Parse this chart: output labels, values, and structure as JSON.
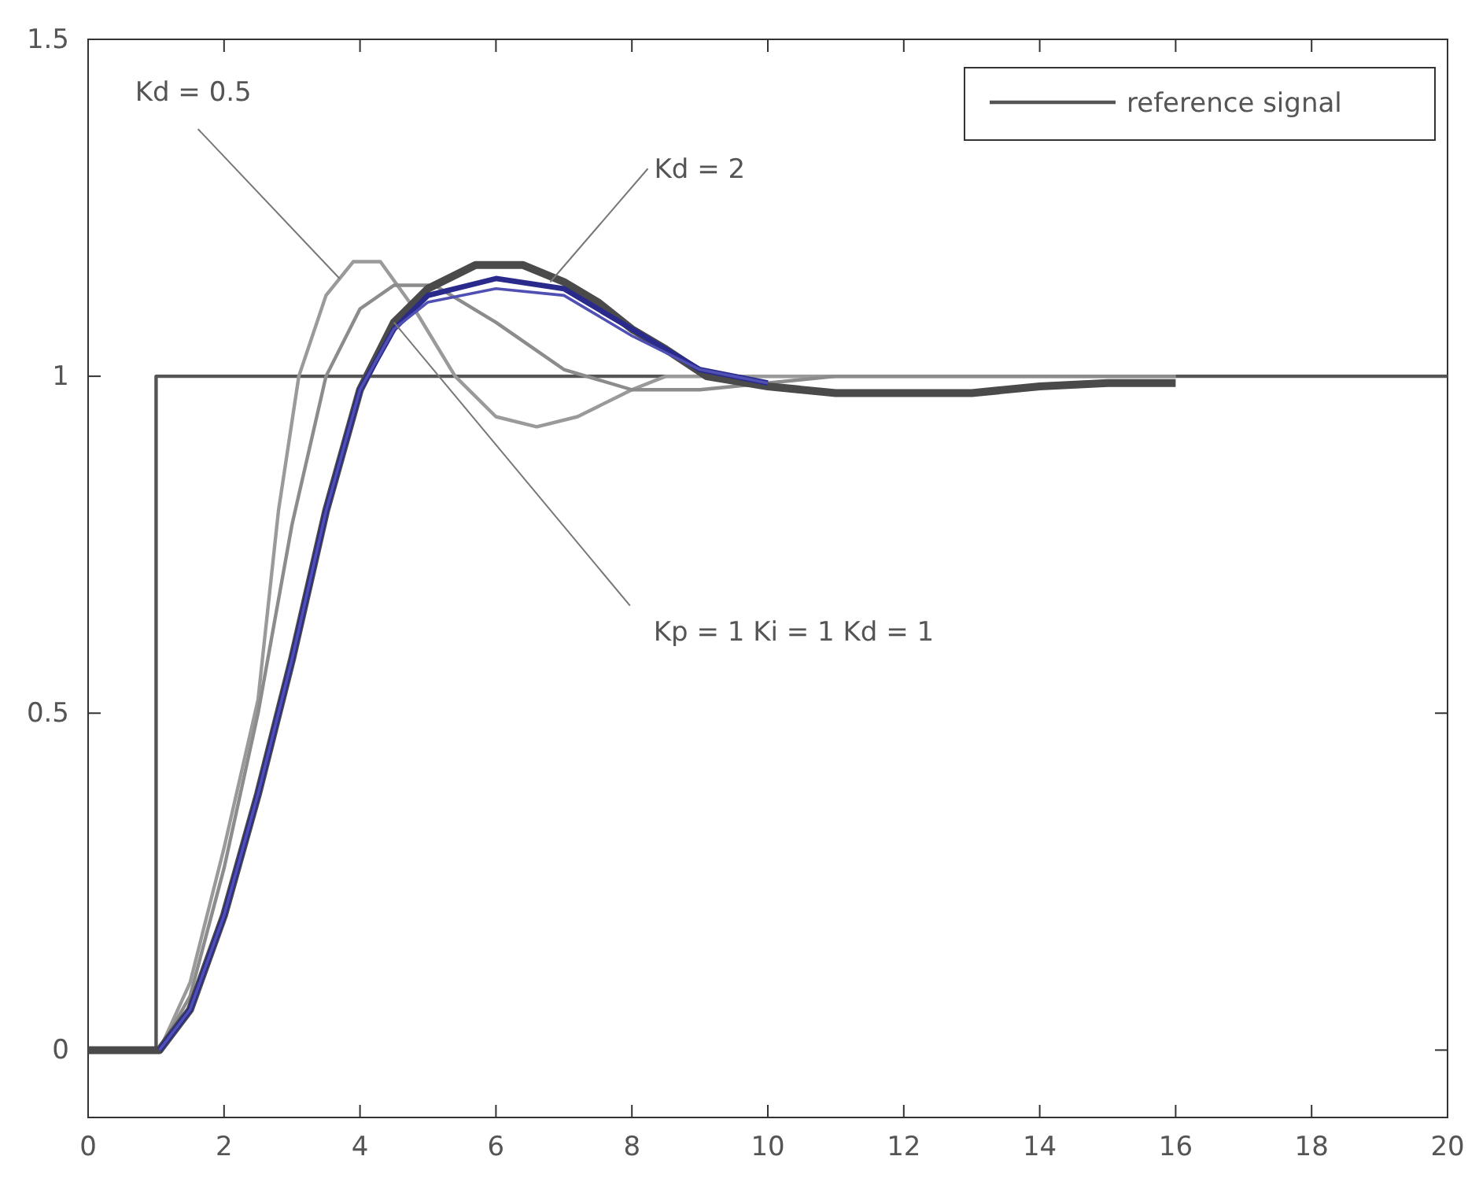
{
  "chart_data": {
    "type": "line",
    "xlim": [
      0,
      20
    ],
    "ylim": [
      -0.1,
      1.5
    ],
    "xticks": [
      0,
      2,
      4,
      6,
      8,
      10,
      12,
      14,
      16,
      18,
      20
    ],
    "yticks": [
      0,
      0.5,
      1,
      1.5
    ],
    "grid": false,
    "legend": "top right",
    "marker": "none",
    "line_style": "solid",
    "series": [
      {
        "name": "reference signal",
        "color": "#555555",
        "x": [
          0,
          1,
          1,
          20
        ],
        "values": [
          0,
          0,
          1,
          1
        ]
      },
      {
        "color": "#9a9a9a",
        "x": [
          0,
          1.05,
          1.5,
          2,
          2.5,
          2.8,
          3.1,
          3.5,
          3.9,
          4.3,
          4.8,
          5.4,
          6,
          6.6,
          7.2,
          8,
          8.5,
          10,
          13,
          16
        ],
        "values": [
          0,
          0,
          0.1,
          0.3,
          0.52,
          0.8,
          1.0,
          1.12,
          1.17,
          1.17,
          1.1,
          1.0,
          0.94,
          0.925,
          0.94,
          0.98,
          1.0,
          1.0,
          1.0,
          1.0
        ]
      },
      {
        "color": "#8c8c8c",
        "x": [
          0,
          1.05,
          1.5,
          2,
          2.5,
          3,
          3.5,
          4,
          4.5,
          5.1,
          6,
          7,
          8,
          9,
          10,
          11,
          16
        ],
        "values": [
          0,
          0,
          0.08,
          0.27,
          0.5,
          0.78,
          1.0,
          1.1,
          1.135,
          1.135,
          1.08,
          1.01,
          0.98,
          0.98,
          0.99,
          1.0,
          1.0
        ]
      },
      {
        "color": "#4a4a4a",
        "x": [
          0,
          1.05,
          1.5,
          2,
          2.5,
          3,
          3.5,
          4,
          4.5,
          5,
          5.7,
          6.4,
          7,
          7.5,
          8,
          8.5,
          9.1,
          10,
          11,
          13,
          14,
          15,
          16
        ],
        "values": [
          0,
          0,
          0.06,
          0.2,
          0.38,
          0.58,
          0.8,
          0.98,
          1.08,
          1.13,
          1.165,
          1.165,
          1.14,
          1.11,
          1.07,
          1.04,
          1.0,
          0.985,
          0.975,
          0.975,
          0.985,
          0.99,
          0.99
        ]
      },
      {
        "color": "#2a2a8c",
        "x": [
          1.05,
          1.5,
          2,
          2.5,
          3,
          3.5,
          4,
          4.5,
          5,
          6,
          7,
          8,
          9,
          9.5,
          10
        ],
        "values": [
          0,
          0.06,
          0.2,
          0.38,
          0.58,
          0.8,
          0.98,
          1.07,
          1.12,
          1.145,
          1.13,
          1.07,
          1.01,
          1.0,
          0.99
        ]
      },
      {
        "color": "#5050b4",
        "x": [
          1.05,
          1.5,
          2,
          2.5,
          3,
          3.5,
          4,
          4.5,
          5,
          6,
          7,
          8,
          9,
          9.5,
          10
        ],
        "values": [
          0,
          0.06,
          0.2,
          0.38,
          0.58,
          0.8,
          0.98,
          1.07,
          1.11,
          1.13,
          1.12,
          1.06,
          1.01,
          1.0,
          0.99
        ]
      }
    ],
    "annotations": [
      {
        "text": "Kd = 0.5",
        "x": 3.7,
        "y": 1.145
      },
      {
        "text": "Kd = 2",
        "x": 6.8,
        "y": 1.14
      },
      {
        "text": "Kp = 1  Ki = 1  Kd = 1",
        "x": 4.5,
        "y": 1.08
      }
    ]
  }
}
